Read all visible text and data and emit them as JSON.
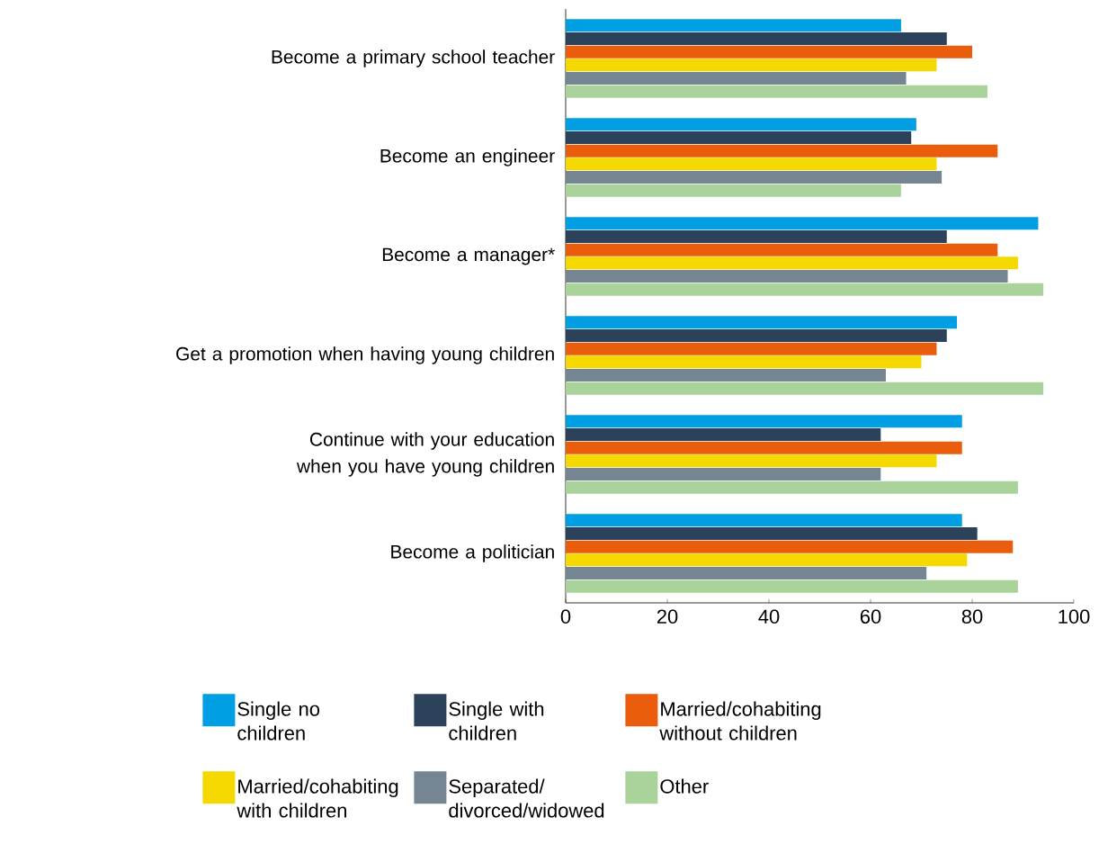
{
  "chart_data": {
    "type": "bar",
    "orientation": "horizontal",
    "categories": [
      "Become a primary school teacher",
      "Become an engineer",
      "Become a manager*",
      "Get a promotion when having young children",
      "Continue with your education when you have young children",
      "Become a politician"
    ],
    "series": [
      {
        "name": "Single no children",
        "color": "#009fe3",
        "values": [
          66,
          69,
          93,
          77,
          78,
          78
        ]
      },
      {
        "name": "Single with children",
        "color": "#2c425b",
        "values": [
          75,
          68,
          75,
          75,
          62,
          81
        ]
      },
      {
        "name": "Married/cohabiting without children",
        "color": "#e95d0c",
        "values": [
          80,
          85,
          85,
          73,
          78,
          88
        ]
      },
      {
        "name": "Married/cohabiting with children",
        "color": "#f5d800",
        "values": [
          73,
          73,
          89,
          70,
          73,
          79
        ]
      },
      {
        "name": "Separated/ divorced/widowed",
        "color": "#758692",
        "values": [
          67,
          74,
          87,
          63,
          62,
          71
        ]
      },
      {
        "name": "Other",
        "color": "#a9d39b",
        "values": [
          83,
          66,
          94,
          94,
          89,
          89
        ]
      }
    ],
    "xlim": [
      0,
      100
    ],
    "xticks": [
      0,
      20,
      40,
      60,
      80,
      100
    ],
    "grid": false,
    "legend": "bottom"
  }
}
